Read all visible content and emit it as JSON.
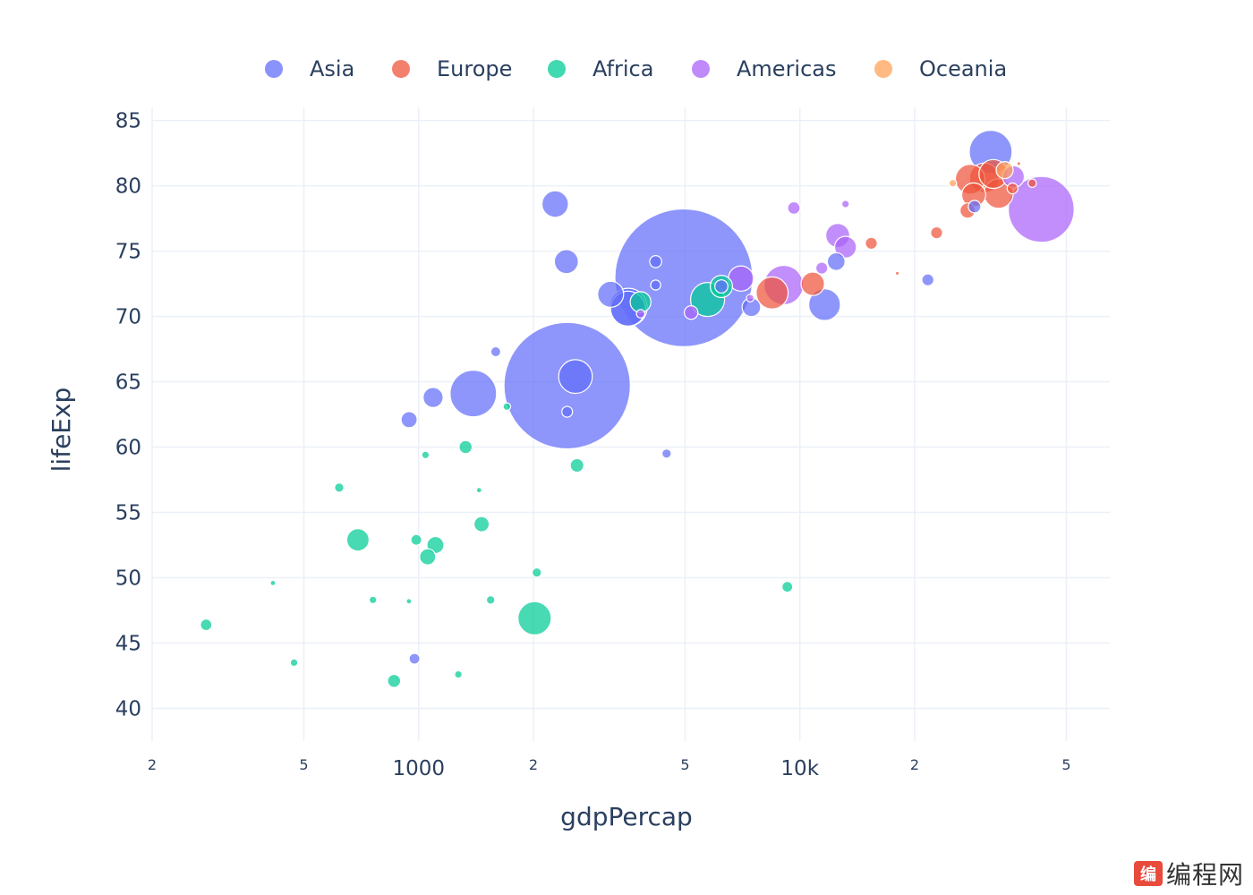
{
  "chart_data": {
    "type": "scatter",
    "title": "",
    "xlabel": "gdpPercap",
    "ylabel": "lifeExp",
    "x_scale": "log",
    "xlim": [
      200,
      65000
    ],
    "ylim": [
      37.5,
      86
    ],
    "y_ticks": [
      40,
      45,
      50,
      55,
      60,
      65,
      70,
      75,
      80,
      85
    ],
    "x_major_ticks": [
      {
        "value": 1000,
        "label": "1000"
      },
      {
        "value": 10000,
        "label": "10k"
      }
    ],
    "x_minor_ticks": [
      {
        "value": 200,
        "label": "2"
      },
      {
        "value": 500,
        "label": "5"
      },
      {
        "value": 2000,
        "label": "2"
      },
      {
        "value": 5000,
        "label": "5"
      },
      {
        "value": 20000,
        "label": "2"
      },
      {
        "value": 50000,
        "label": "5"
      }
    ],
    "grid": true,
    "legend_position": "top",
    "series": [
      {
        "name": "Asia",
        "color": "#636efa",
        "points": [
          [
            4959,
            72.96,
            1318
          ],
          [
            2452,
            64.7,
            1110
          ],
          [
            2579,
            65.4,
            79
          ],
          [
            3548,
            70.7,
            100
          ],
          [
            3190,
            71.7,
            47
          ],
          [
            31656,
            82.6,
            127
          ],
          [
            3541,
            70.6,
            85
          ],
          [
            2441,
            74.2,
            40
          ],
          [
            944,
            62.1,
            18
          ],
          [
            1391,
            64.1,
            150
          ],
          [
            2281,
            78.6,
            49
          ],
          [
            11606,
            70.9,
            70
          ],
          [
            1091,
            63.8,
            28
          ],
          [
            4471,
            59.5,
            6
          ],
          [
            7458,
            70.7,
            24
          ],
          [
            28718,
            78.4,
            11
          ],
          [
            12452,
            74.2,
            22
          ],
          [
            21655,
            72.8,
            10
          ],
          [
            975,
            43.8,
            8
          ],
          [
            4185,
            74.2,
            10
          ],
          [
            1593,
            67.3,
            7
          ],
          [
            2452,
            62.7,
            8
          ],
          [
            4185,
            72.4,
            7
          ],
          [
            6223,
            72.3,
            12
          ]
        ]
      },
      {
        "name": "Europe",
        "color": "#ef553b",
        "points": [
          [
            33207,
            79.4,
            60
          ],
          [
            30470,
            80.6,
            61
          ],
          [
            27976,
            80.5,
            61
          ],
          [
            28570,
            79.3,
            40
          ],
          [
            32170,
            80.9,
            58
          ],
          [
            8458,
            71.8,
            71
          ],
          [
            15389,
            75.6,
            10
          ],
          [
            36126,
            79.8,
            8
          ],
          [
            37506,
            81.7,
            1
          ],
          [
            40676,
            80.2,
            5
          ],
          [
            10808,
            72.5,
            38
          ],
          [
            18008,
            73.3,
            1
          ],
          [
            27538,
            78.1,
            16
          ],
          [
            22833,
            76.4,
            10
          ]
        ]
      },
      {
        "name": "Africa",
        "color": "#00cc96",
        "points": [
          [
            5728,
            71.3,
            80
          ],
          [
            1463,
            54.1,
            16
          ],
          [
            2014,
            46.9,
            77
          ],
          [
            986,
            52.9,
            8
          ],
          [
            1042,
            59.4,
            4
          ],
          [
            693,
            52.9,
            35
          ],
          [
            1107,
            52.5,
            20
          ],
          [
            1056,
            51.6,
            18
          ],
          [
            862,
            42.1,
            12
          ],
          [
            277,
            46.4,
            9
          ],
          [
            415,
            49.6,
            2
          ],
          [
            471,
            43.5,
            4
          ],
          [
            3820,
            71.1,
            30
          ],
          [
            6223,
            72.3,
            34
          ],
          [
            1328,
            60.0,
            12
          ],
          [
            9269,
            49.3,
            8
          ],
          [
            1545,
            48.3,
            5
          ],
          [
            2042,
            50.4,
            6
          ],
          [
            2602,
            58.6,
            13
          ],
          [
            619,
            56.9,
            6
          ],
          [
            759,
            48.3,
            4
          ],
          [
            943,
            48.2,
            2
          ],
          [
            1704,
            63.1,
            4
          ],
          [
            1441,
            56.7,
            2
          ],
          [
            1271,
            42.6,
            4
          ]
        ]
      },
      {
        "name": "Americas",
        "color": "#ab63fa",
        "points": [
          [
            42952,
            78.2,
            301
          ],
          [
            9065,
            72.4,
            108
          ],
          [
            12570,
            76.2,
            40
          ],
          [
            13172,
            75.3,
            33
          ],
          [
            7006,
            72.9,
            44
          ],
          [
            36319,
            80.7,
            33
          ],
          [
            9645,
            78.3,
            11
          ],
          [
            11416,
            73.7,
            10
          ],
          [
            7408,
            71.4,
            4
          ],
          [
            5186,
            70.3,
            13
          ],
          [
            3822,
            70.2,
            5
          ],
          [
            13172,
            78.6,
            4
          ]
        ]
      },
      {
        "name": "Oceania",
        "color": "#FFA15A",
        "points": [
          [
            34435,
            81.2,
            20
          ],
          [
            25185,
            80.2,
            4
          ]
        ]
      }
    ]
  },
  "watermark": {
    "logo_text": "编",
    "text": "编程网"
  }
}
